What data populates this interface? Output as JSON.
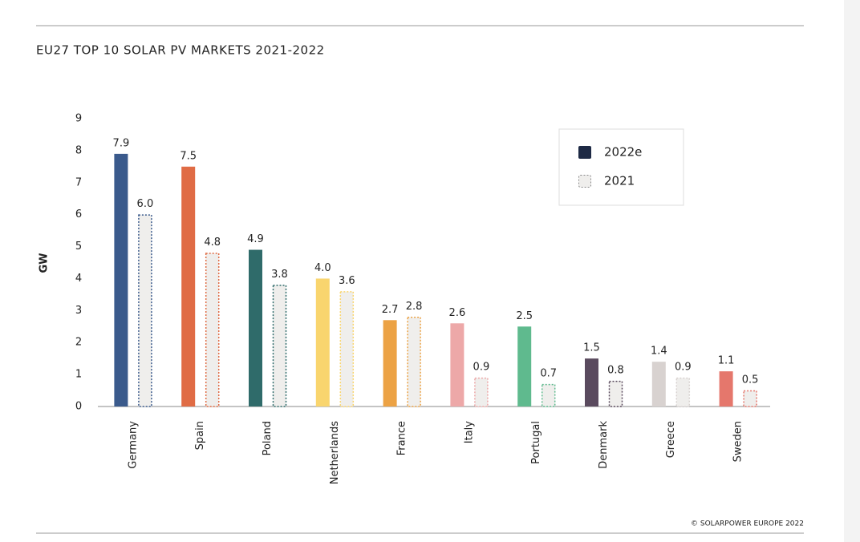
{
  "chart_data": {
    "type": "bar",
    "title": "EU27 TOP 10 SOLAR PV MARKETS 2021-2022",
    "y_label": "GW",
    "source": "© SOLARPOWER EUROPE 2022",
    "categories": [
      "Germany",
      "Spain",
      "Poland",
      "Netherlands",
      "France",
      "Italy",
      "Portugal",
      "Denmark",
      "Greece",
      "Sweden"
    ],
    "category_colors": [
      "#3a5a8c",
      "#e06c45",
      "#2f6b6a",
      "#f9d56e",
      "#eca244",
      "#eda8a8",
      "#5fba8e",
      "#5a4a5e",
      "#d8d2d0",
      "#e5776c"
    ],
    "series": [
      {
        "name": "2022e",
        "color": "#1e2a45",
        "values": [
          7.9,
          7.5,
          4.9,
          4.0,
          2.7,
          2.6,
          2.5,
          1.5,
          1.4,
          1.1
        ],
        "value_labels": [
          "7.9",
          "7.5",
          "4.9",
          "4.0",
          "2.7",
          "2.6",
          "2.5",
          "1.5",
          "1.4",
          "1.1"
        ]
      },
      {
        "name": "2021",
        "color": "#888888",
        "values": [
          6.0,
          4.8,
          3.8,
          3.6,
          2.8,
          0.9,
          0.7,
          0.8,
          0.9,
          0.5
        ],
        "value_labels": [
          "6.0",
          "4.8",
          "3.8",
          "3.6",
          "2.8",
          "0.9",
          "0.7",
          "0.8",
          "0.9",
          "0.5"
        ]
      }
    ],
    "ylim": [
      0,
      9
    ],
    "yticks": [
      0,
      1,
      2,
      3,
      4,
      5,
      6,
      7,
      8,
      9
    ],
    "grid": false,
    "legend": "upper right"
  }
}
